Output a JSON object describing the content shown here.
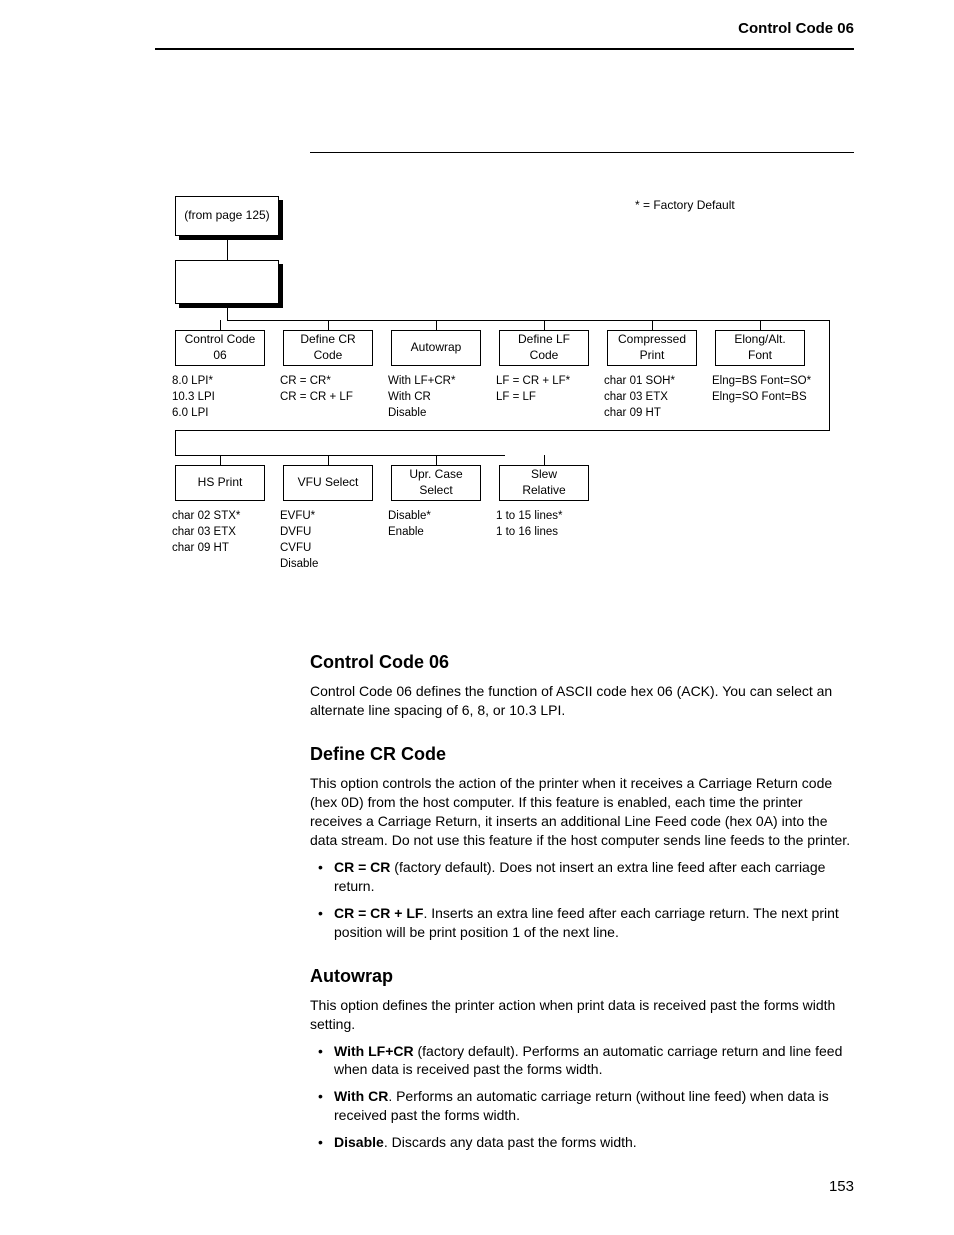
{
  "header": {
    "section_title": "Control Code 06"
  },
  "diagram": {
    "factory_note": "* = Factory Default",
    "root": {
      "label": "(from page 125)"
    },
    "row1": [
      {
        "name": "control-code-06",
        "label": "Control Code\n06",
        "opts": [
          "8.0 LPI*",
          "10.3 LPI",
          "6.0 LPI"
        ]
      },
      {
        "name": "define-cr-code",
        "label": "Define CR\nCode",
        "opts": [
          "CR = CR*",
          "CR = CR + LF"
        ]
      },
      {
        "name": "autowrap",
        "label": "Autowrap",
        "opts": [
          "With LF+CR*",
          "With CR",
          "Disable"
        ]
      },
      {
        "name": "define-lf-code",
        "label": "Define LF\nCode",
        "opts": [
          "LF = CR + LF*",
          "LF = LF"
        ]
      },
      {
        "name": "compressed-print",
        "label": "Compressed\nPrint",
        "opts": [
          "char 01 SOH*",
          "char 03 ETX",
          "char 09 HT"
        ]
      },
      {
        "name": "elong-alt-font",
        "label": "Elong/Alt.\nFont",
        "opts": [
          "Elng=BS Font=SO*",
          "Elng=SO Font=BS"
        ]
      }
    ],
    "row2": [
      {
        "name": "hs-print",
        "label": "HS Print",
        "opts": [
          "char 02 STX*",
          "char 03 ETX",
          "char 09 HT"
        ]
      },
      {
        "name": "vfu-select",
        "label": "VFU Select",
        "opts": [
          "EVFU*",
          "DVFU",
          "CVFU",
          "Disable"
        ]
      },
      {
        "name": "upr-case-select",
        "label": "Upr. Case\nSelect",
        "opts": [
          "Disable*",
          "Enable"
        ]
      },
      {
        "name": "slew-relative",
        "label": "Slew\nRelative",
        "opts": [
          "1 to 15 lines*",
          "1 to 16 lines"
        ]
      }
    ]
  },
  "sections": {
    "control_code_06": {
      "title": "Control Code 06",
      "body": "Control Code 06 defines the function of ASCII code hex 06 (ACK). You can select an alternate line spacing of 6, 8, or 10.3 LPI."
    },
    "define_cr": {
      "title": "Define CR Code",
      "body": "This option controls the action of the printer when it receives a Carriage Return code (hex 0D) from the host computer. If this feature is enabled, each time the printer receives a Carriage Return, it inserts an additional Line Feed code (hex 0A) into the data stream. Do not use this feature if the host computer sends line feeds to the printer.",
      "b1_label": "CR = CR",
      "b1_text": " (factory default). Does not insert an extra line feed after each carriage return.",
      "b2_label": "CR = CR + LF",
      "b2_text": ". Inserts an extra line feed after each carriage return. The next print position will be print position 1 of the next line."
    },
    "autowrap": {
      "title": "Autowrap",
      "body": "This option defines the printer action when print data is received past the forms width setting.",
      "b1_label": "With LF+CR",
      "b1_text": " (factory default). Performs an automatic carriage return and line feed when data is received past the forms width.",
      "b2_label": "With CR",
      "b2_text": ". Performs an automatic carriage return (without line feed) when data is received past the forms width.",
      "b3_label": "Disable",
      "b3_text": ". Discards any data past the forms width."
    }
  },
  "page_number": "153"
}
